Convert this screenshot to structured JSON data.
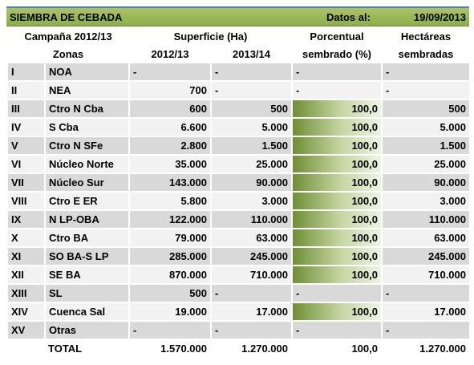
{
  "header": {
    "title": "SIEMBRA DE CEBADA",
    "date_label": "Datos al:",
    "date": "19/09/2013"
  },
  "columns": {
    "campaign": "Campaña 2012/13",
    "surface": "Superficie (Ha)",
    "pct_top": "Porcentual",
    "ha_top": "Hectáreas",
    "zones": "Zonas",
    "y1": "2012/13",
    "y2": "2013/14",
    "pct_bottom": "sembrado (%)",
    "ha_bottom": "sembradas"
  },
  "table": {
    "rows": [
      [
        "I",
        "NOA",
        "-",
        "-",
        "-",
        "-"
      ],
      [
        "II",
        "NEA",
        "700",
        "-",
        "-",
        "-"
      ],
      [
        "III",
        "Ctro N Cba",
        "600",
        "500",
        "100,0",
        "500"
      ],
      [
        "IV",
        "S Cba",
        "6.600",
        "5.000",
        "100,0",
        "5.000"
      ],
      [
        "V",
        "Ctro N SFe",
        "2.800",
        "1.500",
        "100,0",
        "1.500"
      ],
      [
        "VI",
        "Núcleo Norte",
        "35.000",
        "25.000",
        "100,0",
        "25.000"
      ],
      [
        "VII",
        "Núcleo Sur",
        "143.000",
        "90.000",
        "100,0",
        "90.000"
      ],
      [
        "VIII",
        "Ctro E ER",
        "5.800",
        "3.000",
        "100,0",
        "3.000"
      ],
      [
        "IX",
        "N LP-OBA",
        "122.000",
        "110.000",
        "100,0",
        "110.000"
      ],
      [
        "X",
        "Ctro BA",
        "79.000",
        "63.000",
        "100,0",
        "63.000"
      ],
      [
        "XI",
        "SO BA-S LP",
        "285.000",
        "245.000",
        "100,0",
        "245.000"
      ],
      [
        "XII",
        "SE BA",
        "870.000",
        "710.000",
        "100,0",
        "710.000"
      ],
      [
        "XIII",
        "SL",
        "500",
        "-",
        "-",
        "-"
      ],
      [
        "XIV",
        "Cuenca Sal",
        "19.000",
        "17.000",
        "100,0",
        "17.000"
      ],
      [
        "XV",
        "Otras",
        "-",
        "-",
        "-",
        "-"
      ]
    ],
    "total": {
      "label": "TOTAL",
      "values": [
        "1.570.000",
        "1.270.000",
        "100,0",
        "1.270.000"
      ]
    }
  }
}
